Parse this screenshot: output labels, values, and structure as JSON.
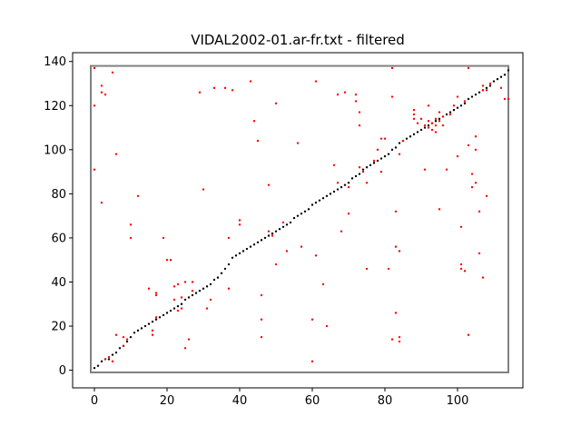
{
  "chart_data": {
    "type": "scatter",
    "title": "VIDAL2002-01.ar-fr.txt - filtered",
    "xlabel": "",
    "ylabel": "",
    "xlim": [
      -6,
      118
    ],
    "ylim": [
      -8,
      144
    ],
    "xticks": [
      0,
      20,
      40,
      60,
      80,
      100
    ],
    "yticks": [
      0,
      20,
      40,
      60,
      80,
      100,
      120,
      140
    ],
    "grid": false,
    "box": {
      "x": [
        -1,
        114
      ],
      "y": [
        -1,
        138
      ],
      "color": "#808080"
    },
    "series": [
      {
        "color": "#000000",
        "points": [
          [
            0,
            1
          ],
          [
            1,
            2
          ],
          [
            2,
            4
          ],
          [
            3,
            5
          ],
          [
            4,
            5
          ],
          [
            5,
            7
          ],
          [
            6,
            8
          ],
          [
            7,
            10
          ],
          [
            8,
            11
          ],
          [
            9,
            13
          ],
          [
            10,
            15
          ],
          [
            11,
            17
          ],
          [
            12,
            18
          ],
          [
            13,
            19
          ],
          [
            14,
            20
          ],
          [
            15,
            21
          ],
          [
            16,
            22
          ],
          [
            17,
            23
          ],
          [
            18,
            24
          ],
          [
            19,
            25
          ],
          [
            20,
            26
          ],
          [
            21,
            27
          ],
          [
            22,
            28
          ],
          [
            23,
            29
          ],
          [
            24,
            30
          ],
          [
            25,
            32
          ],
          [
            26,
            33
          ],
          [
            27,
            34
          ],
          [
            28,
            35
          ],
          [
            29,
            36
          ],
          [
            30,
            37
          ],
          [
            31,
            38
          ],
          [
            32,
            39
          ],
          [
            33,
            41
          ],
          [
            34,
            42
          ],
          [
            35,
            44
          ],
          [
            36,
            46
          ],
          [
            37,
            48
          ],
          [
            38,
            51
          ],
          [
            39,
            52
          ],
          [
            40,
            53
          ],
          [
            41,
            54
          ],
          [
            42,
            55
          ],
          [
            43,
            56
          ],
          [
            44,
            57
          ],
          [
            45,
            58
          ],
          [
            46,
            59
          ],
          [
            47,
            60
          ],
          [
            48,
            61
          ],
          [
            49,
            62
          ],
          [
            50,
            63
          ],
          [
            51,
            64
          ],
          [
            52,
            65
          ],
          [
            53,
            66
          ],
          [
            54,
            67
          ],
          [
            55,
            69
          ],
          [
            56,
            70
          ],
          [
            57,
            71
          ],
          [
            58,
            72
          ],
          [
            59,
            73
          ],
          [
            60,
            75
          ],
          [
            61,
            76
          ],
          [
            62,
            77
          ],
          [
            63,
            78
          ],
          [
            64,
            79
          ],
          [
            65,
            80
          ],
          [
            66,
            81
          ],
          [
            67,
            82
          ],
          [
            68,
            83
          ],
          [
            69,
            84
          ],
          [
            70,
            85
          ],
          [
            71,
            87
          ],
          [
            72,
            88
          ],
          [
            73,
            89
          ],
          [
            74,
            91
          ],
          [
            75,
            92
          ],
          [
            76,
            93
          ],
          [
            77,
            94
          ],
          [
            78,
            95
          ],
          [
            79,
            96
          ],
          [
            80,
            97
          ],
          [
            81,
            98
          ],
          [
            82,
            100
          ],
          [
            83,
            101
          ],
          [
            84,
            103
          ],
          [
            85,
            104
          ],
          [
            86,
            105
          ],
          [
            87,
            106
          ],
          [
            88,
            107
          ],
          [
            89,
            108
          ],
          [
            90,
            109
          ],
          [
            91,
            110
          ],
          [
            92,
            111
          ],
          [
            93,
            112
          ],
          [
            94,
            113
          ],
          [
            95,
            114
          ],
          [
            96,
            115
          ],
          [
            97,
            116
          ],
          [
            98,
            117
          ],
          [
            99,
            118
          ],
          [
            100,
            119
          ],
          [
            101,
            120
          ],
          [
            102,
            121
          ],
          [
            103,
            123
          ],
          [
            104,
            124
          ],
          [
            105,
            125
          ],
          [
            106,
            126
          ],
          [
            107,
            127
          ],
          [
            108,
            128
          ],
          [
            109,
            129
          ],
          [
            110,
            131
          ],
          [
            111,
            132
          ],
          [
            112,
            133
          ],
          [
            113,
            134
          ],
          [
            114,
            136
          ]
        ]
      },
      {
        "color": "#ff0000",
        "points": [
          [
            0,
            137
          ],
          [
            0,
            120
          ],
          [
            0,
            91
          ],
          [
            2,
            129
          ],
          [
            2,
            126
          ],
          [
            3,
            125
          ],
          [
            5,
            135
          ],
          [
            6,
            98
          ],
          [
            2,
            76
          ],
          [
            3,
            5
          ],
          [
            4,
            6
          ],
          [
            5,
            4
          ],
          [
            6,
            16
          ],
          [
            8,
            11
          ],
          [
            8,
            15
          ],
          [
            9,
            14
          ],
          [
            10,
            66
          ],
          [
            10,
            60
          ],
          [
            12,
            79
          ],
          [
            15,
            37
          ],
          [
            16,
            16
          ],
          [
            16,
            18
          ],
          [
            17,
            24
          ],
          [
            17,
            35
          ],
          [
            17,
            34
          ],
          [
            19,
            60
          ],
          [
            20,
            50
          ],
          [
            21,
            50
          ],
          [
            22,
            32
          ],
          [
            22,
            38
          ],
          [
            23,
            27
          ],
          [
            23,
            39
          ],
          [
            24,
            28
          ],
          [
            24,
            33
          ],
          [
            25,
            40
          ],
          [
            25,
            10
          ],
          [
            26,
            14
          ],
          [
            27,
            36
          ],
          [
            27,
            40
          ],
          [
            29,
            126
          ],
          [
            30,
            82
          ],
          [
            31,
            28
          ],
          [
            32,
            32
          ],
          [
            33,
            128
          ],
          [
            36,
            128
          ],
          [
            37,
            60
          ],
          [
            37,
            37
          ],
          [
            38,
            127
          ],
          [
            40,
            66
          ],
          [
            40,
            68
          ],
          [
            43,
            131
          ],
          [
            44,
            113
          ],
          [
            45,
            104
          ],
          [
            46,
            34
          ],
          [
            46,
            23
          ],
          [
            46,
            15
          ],
          [
            48,
            84
          ],
          [
            48,
            63
          ],
          [
            49,
            61
          ],
          [
            50,
            121
          ],
          [
            50,
            48
          ],
          [
            52,
            67
          ],
          [
            53,
            54
          ],
          [
            56,
            103
          ],
          [
            57,
            56
          ],
          [
            60,
            23
          ],
          [
            60,
            4
          ],
          [
            61,
            131
          ],
          [
            61,
            52
          ],
          [
            63,
            39
          ],
          [
            64,
            20
          ],
          [
            66,
            93
          ],
          [
            67,
            125
          ],
          [
            67,
            85
          ],
          [
            68,
            63
          ],
          [
            69,
            126
          ],
          [
            70,
            83
          ],
          [
            70,
            71
          ],
          [
            72,
            125
          ],
          [
            72,
            122
          ],
          [
            73,
            117
          ],
          [
            73,
            111
          ],
          [
            73,
            92
          ],
          [
            74,
            90
          ],
          [
            75,
            85
          ],
          [
            75,
            46
          ],
          [
            77,
            95
          ],
          [
            78,
            100
          ],
          [
            79,
            105
          ],
          [
            79,
            90
          ],
          [
            80,
            105
          ],
          [
            81,
            46
          ],
          [
            82,
            137
          ],
          [
            82,
            124
          ],
          [
            82,
            14
          ],
          [
            83,
            26
          ],
          [
            83,
            56
          ],
          [
            83,
            72
          ],
          [
            84,
            54
          ],
          [
            84,
            15
          ],
          [
            84,
            13
          ],
          [
            84,
            98
          ],
          [
            85,
            104
          ],
          [
            88,
            118
          ],
          [
            88,
            116
          ],
          [
            88,
            114
          ],
          [
            89,
            112
          ],
          [
            90,
            114
          ],
          [
            91,
            91
          ],
          [
            91,
            111
          ],
          [
            92,
            120
          ],
          [
            92,
            113
          ],
          [
            92,
            110
          ],
          [
            93,
            112
          ],
          [
            93,
            109
          ],
          [
            94,
            114
          ],
          [
            94,
            111
          ],
          [
            94,
            108
          ],
          [
            95,
            73
          ],
          [
            95,
            117
          ],
          [
            95,
            113
          ],
          [
            96,
            115
          ],
          [
            96,
            111
          ],
          [
            97,
            91
          ],
          [
            98,
            116
          ],
          [
            99,
            120
          ],
          [
            100,
            124
          ],
          [
            100,
            97
          ],
          [
            101,
            65
          ],
          [
            101,
            48
          ],
          [
            101,
            46
          ],
          [
            102,
            45
          ],
          [
            102,
            122
          ],
          [
            103,
            137
          ],
          [
            103,
            102
          ],
          [
            103,
            16
          ],
          [
            104,
            89
          ],
          [
            104,
            83
          ],
          [
            105,
            106
          ],
          [
            105,
            100
          ],
          [
            105,
            85
          ],
          [
            106,
            72
          ],
          [
            106,
            53
          ],
          [
            107,
            42
          ],
          [
            107,
            127
          ],
          [
            107,
            129
          ],
          [
            108,
            79
          ],
          [
            108,
            127
          ],
          [
            109,
            130
          ],
          [
            112,
            128
          ],
          [
            113,
            123
          ],
          [
            114,
            123
          ]
        ]
      }
    ]
  }
}
